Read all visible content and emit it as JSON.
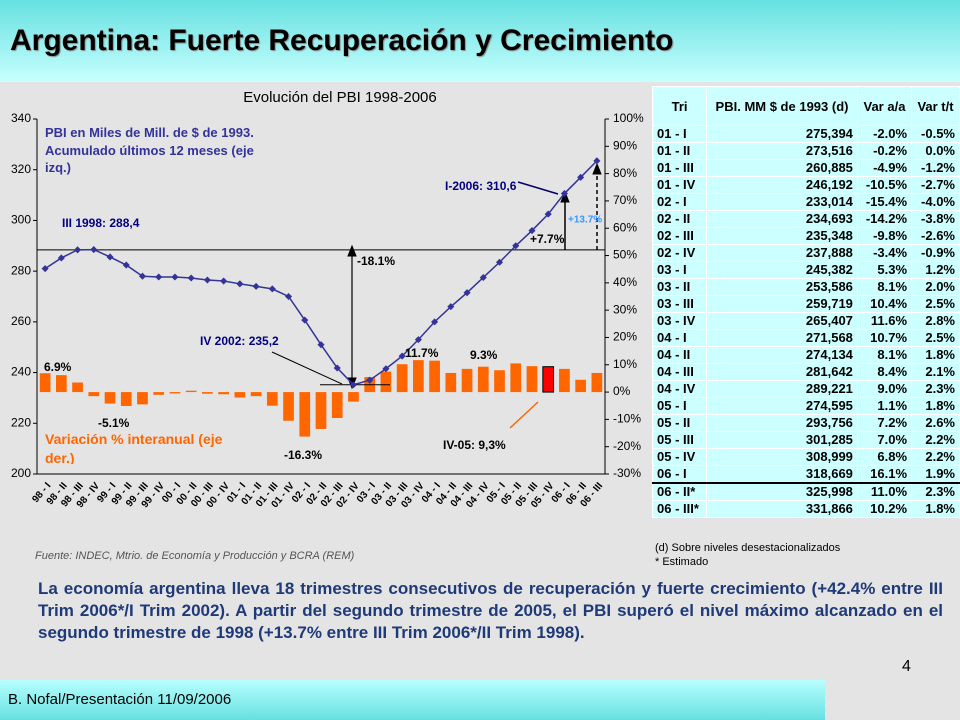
{
  "header": {
    "title": "Argentina: Fuerte Recuperación y Crecimiento"
  },
  "chart_data": {
    "type": "combo",
    "title": "Evolución del PBI 1998-2006",
    "categories": [
      "98 - I",
      "98 - II",
      "98 - III",
      "98 - IV",
      "99 - I",
      "99 - II",
      "99 - III",
      "99 - IV",
      "00 - I",
      "00 - II",
      "00 - III",
      "00 - IV",
      "01 - I",
      "01 - II",
      "01 - III",
      "01 - IV",
      "02 - I",
      "02 - II",
      "02 - III",
      "02 - IV",
      "03 - I",
      "03 - II",
      "03 - III",
      "03 - IV",
      "04 - I",
      "04 - II",
      "04 - III",
      "04 - IV",
      "05 - I",
      "05 - II",
      "05 - III",
      "05 - IV",
      "06 - I",
      "06 - II",
      "06 - III"
    ],
    "series": [
      {
        "name": "PBI en Miles de Mill. de $ de 1993. Acumulado últimos 12 meses (eje izq.)",
        "type": "line",
        "color": "#333399",
        "values": [
          281,
          285.2,
          288.4,
          288.5,
          285.6,
          282.4,
          278,
          277.7,
          277.7,
          277.3,
          276.5,
          276.1,
          275,
          274,
          273,
          270,
          260.7,
          251,
          241.8,
          235.2,
          237,
          241.5,
          246.5,
          253,
          260,
          266,
          271.5,
          277.5,
          283.5,
          290,
          296,
          302.5,
          310.6,
          317,
          323.5
        ]
      },
      {
        "name": "Variación % interanual (eje der.)",
        "type": "bar",
        "axis": "y2",
        "color": "#ff6600",
        "highlight_index": 31,
        "highlight_color": "#ff0000",
        "values": [
          6.9,
          6.2,
          3.5,
          -1.5,
          -4.2,
          -5.1,
          -4.5,
          -1,
          -0.5,
          0.5,
          -0.6,
          -0.8,
          -2,
          -1.5,
          -5,
          -10.5,
          -16.3,
          -13.5,
          -9.5,
          -3.5,
          5.5,
          7.5,
          10.2,
          11.7,
          11.5,
          7,
          8.5,
          9.3,
          8,
          10.5,
          9.5,
          9.3,
          8.5,
          4.5,
          7
        ]
      }
    ],
    "ylim": [
      200,
      340
    ],
    "yticks": [
      200,
      220,
      240,
      260,
      280,
      300,
      320,
      340
    ],
    "y2lim": [
      -30,
      100
    ],
    "y2ticks": [
      {
        "value": -30,
        "label": "-30%"
      },
      {
        "value": -20,
        "label": "-20%"
      },
      {
        "value": -10,
        "label": "-10%"
      },
      {
        "value": 0,
        "label": "0%"
      },
      {
        "value": 10,
        "label": "10%"
      },
      {
        "value": 20,
        "label": "20%"
      },
      {
        "value": 30,
        "label": "30%"
      },
      {
        "value": 40,
        "label": "40%"
      },
      {
        "value": 50,
        "label": "50%"
      },
      {
        "value": 60,
        "label": "60%"
      },
      {
        "value": 70,
        "label": "70%"
      },
      {
        "value": 80,
        "label": "80%"
      },
      {
        "value": 90,
        "label": "90%"
      },
      {
        "value": 100,
        "label": "100%"
      }
    ],
    "annotations": [
      "III 1998: 288,4",
      "-18.1%",
      "IV 2002: 235,2",
      "I-2006: 310,6",
      "+7.7%",
      "+13.7%",
      "11.7%",
      "9.3%",
      "6.9%",
      "-5.1%",
      "-16.3%",
      "IV-05: 9,3%"
    ],
    "source": "Fuente: INDEC, Mtrio. de Economía y Producción y BCRA (REM)"
  },
  "table": {
    "header": [
      "Tri",
      "PBI. MM $ de 1993 (d)",
      "Var a/a",
      "Var t/t"
    ],
    "rows": [
      [
        "01 - I",
        "275,394",
        "-2.0%",
        "-0.5%"
      ],
      [
        "01 - II",
        "273,516",
        "-0.2%",
        "0.0%"
      ],
      [
        "01 - III",
        "260,885",
        "-4.9%",
        "-1.2%"
      ],
      [
        "01 - IV",
        "246,192",
        "-10.5%",
        "-2.7%"
      ],
      [
        "02 - I",
        "233,014",
        "-15.4%",
        "-4.0%"
      ],
      [
        "02 - II",
        "234,693",
        "-14.2%",
        "-3.8%"
      ],
      [
        "02 - III",
        "235,348",
        "-9.8%",
        "-2.6%"
      ],
      [
        "02 - IV",
        "237,888",
        "-3.4%",
        "-0.9%"
      ],
      [
        "03 - I",
        "245,382",
        "5.3%",
        "1.2%"
      ],
      [
        "03 - II",
        "253,586",
        "8.1%",
        "2.0%"
      ],
      [
        "03 - III",
        "259,719",
        "10.4%",
        "2.5%"
      ],
      [
        "03 - IV",
        "265,407",
        "11.6%",
        "2.8%"
      ],
      [
        "04 - I",
        "271,568",
        "10.7%",
        "2.5%"
      ],
      [
        "04 - II",
        "274,134",
        "8.1%",
        "1.8%"
      ],
      [
        "04 - III",
        "281,642",
        "8.4%",
        "2.1%"
      ],
      [
        "04 - IV",
        "289,221",
        "9.0%",
        "2.3%"
      ],
      [
        "05 - I",
        "274,595",
        "1.1%",
        "1.8%"
      ],
      [
        "05 - II",
        "293,756",
        "7.2%",
        "2.6%"
      ],
      [
        "05 - III",
        "301,285",
        "7.0%",
        "2.2%"
      ],
      [
        "05 - IV",
        "308,999",
        "6.8%",
        "2.2%"
      ],
      [
        "06 - I",
        "318,669",
        "16.1%",
        "1.9%"
      ],
      [
        "06 - II*",
        "325,998",
        "11.0%",
        "2.3%"
      ],
      [
        "06 - III*",
        "331,866",
        "10.2%",
        "1.8%"
      ]
    ],
    "notes": [
      "(d) Sobre niveles desestacionalizados",
      "* Estimado"
    ]
  },
  "body": "La economía argentina lleva 18 trimestres consecutivos de recuperación y fuerte crecimiento (+42.4% entre III Trim 2006*/I Trim 2002). A partir del segundo trimestre de 2005, el PBI superó el nivel máximo alcanzado en el segundo trimestre de 1998 (+13.7% entre III Trim 2006*/II Trim 1998).",
  "footer": {
    "author": "B. Nofal/Presentación 11/09/2006",
    "page": "4"
  }
}
